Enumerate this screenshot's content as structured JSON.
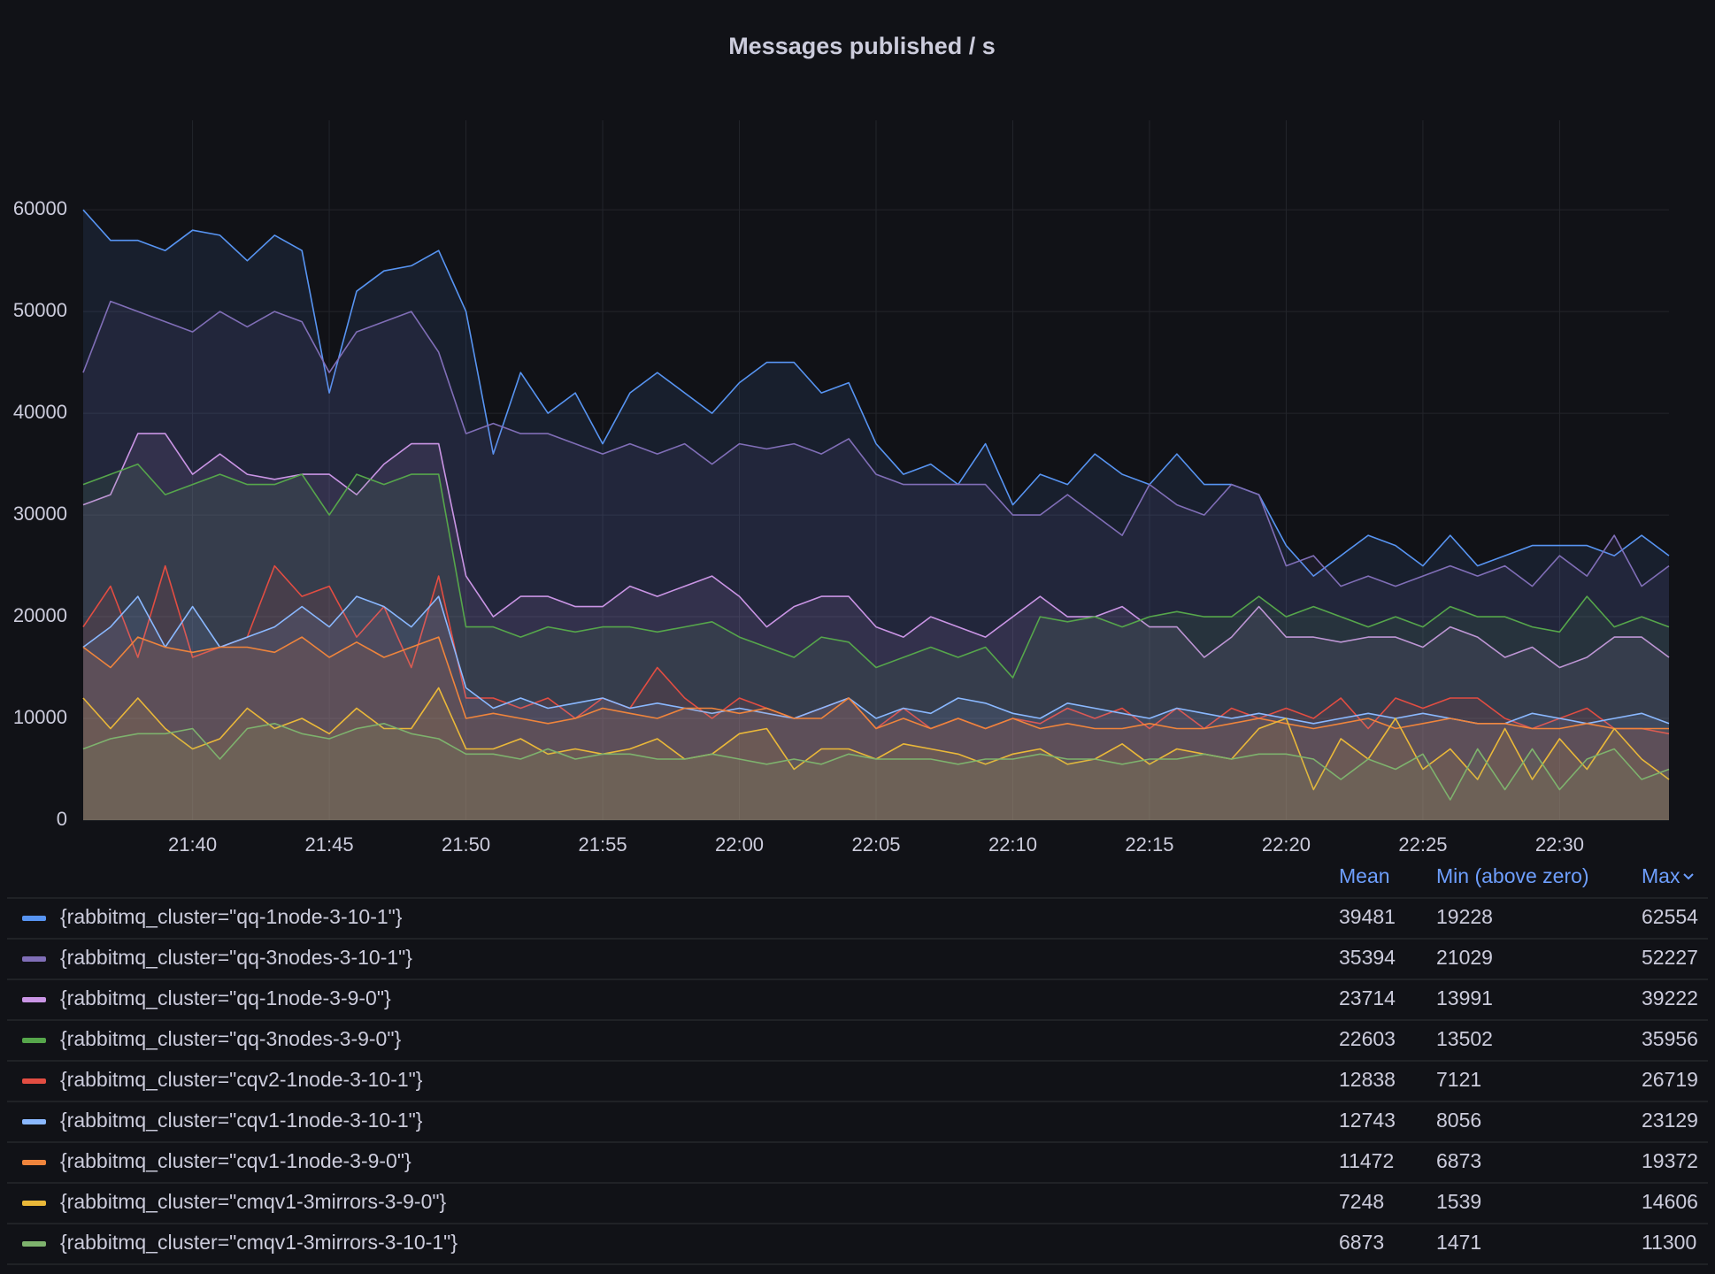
{
  "chart_data": {
    "type": "line",
    "title": "Messages published / s",
    "x": [
      "21:36",
      "21:37",
      "21:38",
      "21:39",
      "21:40",
      "21:41",
      "21:42",
      "21:43",
      "21:44",
      "21:45",
      "21:46",
      "21:47",
      "21:48",
      "21:49",
      "21:50",
      "21:51",
      "21:52",
      "21:53",
      "21:54",
      "21:55",
      "21:56",
      "21:57",
      "21:58",
      "21:59",
      "22:00",
      "22:01",
      "22:02",
      "22:03",
      "22:04",
      "22:05",
      "22:06",
      "22:07",
      "22:08",
      "22:09",
      "22:10",
      "22:11",
      "22:12",
      "22:13",
      "22:14",
      "22:15",
      "22:16",
      "22:17",
      "22:18",
      "22:19",
      "22:20",
      "22:21",
      "22:22",
      "22:23",
      "22:24",
      "22:25",
      "22:26",
      "22:27",
      "22:28",
      "22:29",
      "22:30",
      "22:31",
      "22:32",
      "22:33",
      "22:34"
    ],
    "xlim": [
      "21:36",
      "22:34"
    ],
    "xticks": [
      "21:40",
      "21:45",
      "21:50",
      "21:55",
      "22:00",
      "22:05",
      "22:10",
      "22:15",
      "22:20",
      "22:25",
      "22:30"
    ],
    "ylim": [
      0,
      68800
    ],
    "yticks": [
      0,
      10000,
      20000,
      30000,
      40000,
      50000,
      60000
    ],
    "grid": true,
    "fill": true,
    "legend": {
      "columns": [
        "Mean",
        "Min (above zero)",
        "Max"
      ]
    },
    "series": [
      {
        "name": "{rabbitmq_cluster=\"qq-1node-3-10-1\"}",
        "color": "#5794f2",
        "mean": 39481,
        "min": 19228,
        "max": 62554,
        "values": [
          60000,
          57000,
          57000,
          56000,
          58000,
          57500,
          55000,
          57500,
          56000,
          42000,
          52000,
          54000,
          54500,
          56000,
          50000,
          36000,
          44000,
          40000,
          42000,
          37000,
          42000,
          44000,
          42000,
          40000,
          43000,
          45000,
          45000,
          42000,
          43000,
          37000,
          34000,
          35000,
          33000,
          37000,
          31000,
          34000,
          33000,
          36000,
          34000,
          33000,
          36000,
          33000,
          33000,
          32000,
          27000,
          24000,
          26000,
          28000,
          27000,
          25000,
          28000,
          25000,
          26000,
          27000,
          27000,
          27000,
          26000,
          28000,
          26000
        ]
      },
      {
        "name": "{rabbitmq_cluster=\"qq-3nodes-3-10-1\"}",
        "color": "#806eb7",
        "mean": 35394,
        "min": 21029,
        "max": 52227,
        "values": [
          44000,
          51000,
          50000,
          49000,
          48000,
          50000,
          48500,
          50000,
          49000,
          44000,
          48000,
          49000,
          50000,
          46000,
          38000,
          39000,
          38000,
          38000,
          37000,
          36000,
          37000,
          36000,
          37000,
          35000,
          37000,
          36500,
          37000,
          36000,
          37500,
          34000,
          33000,
          33000,
          33000,
          33000,
          30000,
          30000,
          32000,
          30000,
          28000,
          33000,
          31000,
          30000,
          33000,
          32000,
          25000,
          26000,
          23000,
          24000,
          23000,
          24000,
          25000,
          24000,
          25000,
          23000,
          26000,
          24000,
          28000,
          23000,
          25000
        ]
      },
      {
        "name": "{rabbitmq_cluster=\"qq-1node-3-9-0\"}",
        "color": "#ca95e5",
        "mean": 23714,
        "min": 13991,
        "max": 39222,
        "values": [
          31000,
          32000,
          38000,
          38000,
          34000,
          36000,
          34000,
          33500,
          34000,
          34000,
          32000,
          35000,
          37000,
          37000,
          24000,
          20000,
          22000,
          22000,
          21000,
          21000,
          23000,
          22000,
          23000,
          24000,
          22000,
          19000,
          21000,
          22000,
          22000,
          19000,
          18000,
          20000,
          19000,
          18000,
          20000,
          22000,
          20000,
          20000,
          21000,
          19000,
          19000,
          16000,
          18000,
          21000,
          18000,
          18000,
          17500,
          18000,
          18000,
          17000,
          19000,
          18000,
          16000,
          17000,
          15000,
          16000,
          18000,
          18000,
          16000
        ]
      },
      {
        "name": "{rabbitmq_cluster=\"qq-3nodes-3-9-0\"}",
        "color": "#56a64b",
        "mean": 22603,
        "min": 13502,
        "max": 35956,
        "values": [
          33000,
          34000,
          35000,
          32000,
          33000,
          34000,
          33000,
          33000,
          34000,
          30000,
          34000,
          33000,
          34000,
          34000,
          19000,
          19000,
          18000,
          19000,
          18500,
          19000,
          19000,
          18500,
          19000,
          19500,
          18000,
          17000,
          16000,
          18000,
          17500,
          15000,
          16000,
          17000,
          16000,
          17000,
          14000,
          20000,
          19500,
          20000,
          19000,
          20000,
          20500,
          20000,
          20000,
          22000,
          20000,
          21000,
          20000,
          19000,
          20000,
          19000,
          21000,
          20000,
          20000,
          19000,
          18500,
          22000,
          19000,
          20000,
          19000
        ]
      },
      {
        "name": "{rabbitmq_cluster=\"cqv2-1node-3-10-1\"}",
        "color": "#e24d42",
        "mean": 12838,
        "min": 7121,
        "max": 26719,
        "values": [
          19000,
          23000,
          16000,
          25000,
          16000,
          17000,
          18000,
          25000,
          22000,
          23000,
          18000,
          21000,
          15000,
          24000,
          12000,
          12000,
          11000,
          12000,
          10000,
          12000,
          11000,
          15000,
          12000,
          10000,
          12000,
          11000,
          10000,
          11000,
          12000,
          9000,
          11000,
          9000,
          10000,
          9000,
          10000,
          9500,
          11000,
          10000,
          11000,
          9000,
          11000,
          9000,
          11000,
          10000,
          11000,
          10000,
          12000,
          9000,
          12000,
          11000,
          12000,
          12000,
          10000,
          9000,
          10000,
          11000,
          9000,
          9000,
          8500
        ]
      },
      {
        "name": "{rabbitmq_cluster=\"cqv1-1node-3-10-1\"}",
        "color": "#8ab8ff",
        "mean": 12743,
        "min": 8056,
        "max": 23129,
        "values": [
          17000,
          19000,
          22000,
          17000,
          21000,
          17000,
          18000,
          19000,
          21000,
          19000,
          22000,
          21000,
          19000,
          22000,
          13000,
          11000,
          12000,
          11000,
          11500,
          12000,
          11000,
          11500,
          11000,
          10500,
          11000,
          10500,
          10000,
          11000,
          12000,
          10000,
          11000,
          10500,
          12000,
          11500,
          10500,
          10000,
          11500,
          11000,
          10500,
          10000,
          11000,
          10500,
          10000,
          10500,
          10000,
          9500,
          10000,
          10500,
          10000,
          10500,
          10000,
          9500,
          9500,
          10500,
          10000,
          9500,
          10000,
          10500,
          9500
        ]
      },
      {
        "name": "{rabbitmq_cluster=\"cqv1-1node-3-9-0\"}",
        "color": "#ef843c",
        "mean": 11472,
        "min": 6873,
        "max": 19372,
        "values": [
          17000,
          15000,
          18000,
          17000,
          16500,
          17000,
          17000,
          16500,
          18000,
          16000,
          17500,
          16000,
          17000,
          18000,
          10000,
          10500,
          10000,
          9500,
          10000,
          11000,
          10500,
          10000,
          11000,
          11000,
          10500,
          11000,
          10000,
          10000,
          12000,
          9000,
          10000,
          9000,
          10000,
          9000,
          10000,
          9000,
          9500,
          9000,
          9000,
          9500,
          9000,
          9000,
          9500,
          10000,
          9500,
          9000,
          9500,
          10000,
          9000,
          9500,
          10000,
          9500,
          9500,
          9000,
          9000,
          9500,
          9000,
          9000,
          9000
        ]
      },
      {
        "name": "{rabbitmq_cluster=\"cmqv1-3mirrors-3-9-0\"}",
        "color": "#eab839",
        "mean": 7248,
        "min": 1539,
        "max": 14606,
        "values": [
          12000,
          9000,
          12000,
          9000,
          7000,
          8000,
          11000,
          9000,
          10000,
          8500,
          11000,
          9000,
          9000,
          13000,
          7000,
          7000,
          8000,
          6500,
          7000,
          6500,
          7000,
          8000,
          6000,
          6500,
          8500,
          9000,
          5000,
          7000,
          7000,
          6000,
          7500,
          7000,
          6500,
          5500,
          6500,
          7000,
          5500,
          6000,
          7500,
          5500,
          7000,
          6500,
          6000,
          9000,
          10000,
          3000,
          8000,
          6000,
          10000,
          5000,
          7000,
          4000,
          9000,
          4000,
          8000,
          5000,
          9000,
          6000,
          4000
        ]
      },
      {
        "name": "{rabbitmq_cluster=\"cmqv1-3mirrors-3-10-1\"}",
        "color": "#7eb26d",
        "mean": 6873,
        "min": 1471,
        "max": 11300,
        "values": [
          7000,
          8000,
          8500,
          8500,
          9000,
          6000,
          9000,
          9500,
          8500,
          8000,
          9000,
          9500,
          8500,
          8000,
          6500,
          6500,
          6000,
          7000,
          6000,
          6500,
          6500,
          6000,
          6000,
          6500,
          6000,
          5500,
          6000,
          5500,
          6500,
          6000,
          6000,
          6000,
          5500,
          6000,
          6000,
          6500,
          6000,
          6000,
          5500,
          6000,
          6000,
          6500,
          6000,
          6500,
          6500,
          6000,
          4000,
          6000,
          5000,
          6500,
          2000,
          7000,
          3000,
          7000,
          3000,
          6000,
          7000,
          4000,
          5000
        ]
      }
    ]
  }
}
